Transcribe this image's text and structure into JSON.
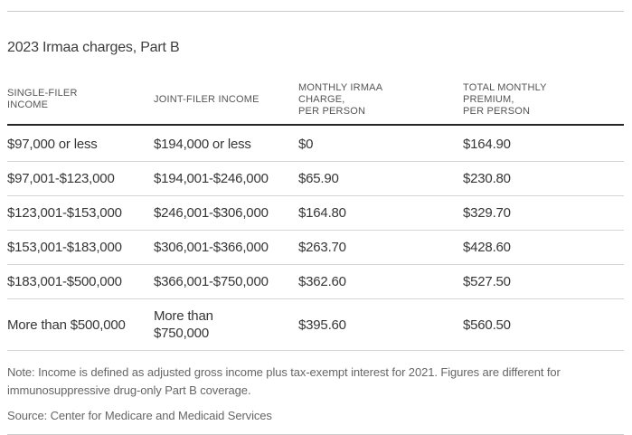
{
  "title": "2023 Irmaa charges, Part B",
  "chart_data": {
    "type": "table",
    "columns": [
      {
        "id": "single-filer-income",
        "lines": [
          "SINGLE-FILER",
          "INCOME"
        ]
      },
      {
        "id": "joint-filer-income",
        "lines": [
          "JOINT-FILER INCOME"
        ]
      },
      {
        "id": "monthly-irmaa-charge",
        "lines": [
          "MONTHLY IRMAA",
          "CHARGE,",
          "PER PERSON"
        ]
      },
      {
        "id": "total-monthly-premium",
        "lines": [
          "TOTAL MONTHLY",
          "PREMIUM,",
          "PER PERSON"
        ]
      }
    ],
    "rows": [
      [
        "$97,000 or less",
        "$194,000 or less",
        "$0",
        "$164.90"
      ],
      [
        "$97,001-$123,000",
        "$194,001-$246,000",
        "$65.90",
        "$230.80"
      ],
      [
        "$123,001-$153,000",
        "$246,001-$306,000",
        "$164.80",
        "$329.70"
      ],
      [
        "$153,001-$183,000",
        "$306,001-$366,000",
        "$263.70",
        "$428.60"
      ],
      [
        "$183,001-$500,000",
        "$366,001-$750,000",
        "$362.60",
        "$527.50"
      ],
      [
        "More than $500,000",
        "More than\n$750,000",
        "$395.60",
        "$560.50"
      ]
    ]
  },
  "note": "Note: Income is defined as adjusted gross income plus tax-exempt interest for 2021. Figures are different for immunosuppressive drug-only Part B coverage.",
  "source": "Source: Center for Medicare and Medicaid Services",
  "colors": {
    "title_text": "#3d3d3d",
    "header_text": "#555555",
    "cell_text": "#363636",
    "note_text": "#666666",
    "rule_light": "#cccccc",
    "rule_dark": "#252525",
    "row_line": "#d4d4d4"
  }
}
